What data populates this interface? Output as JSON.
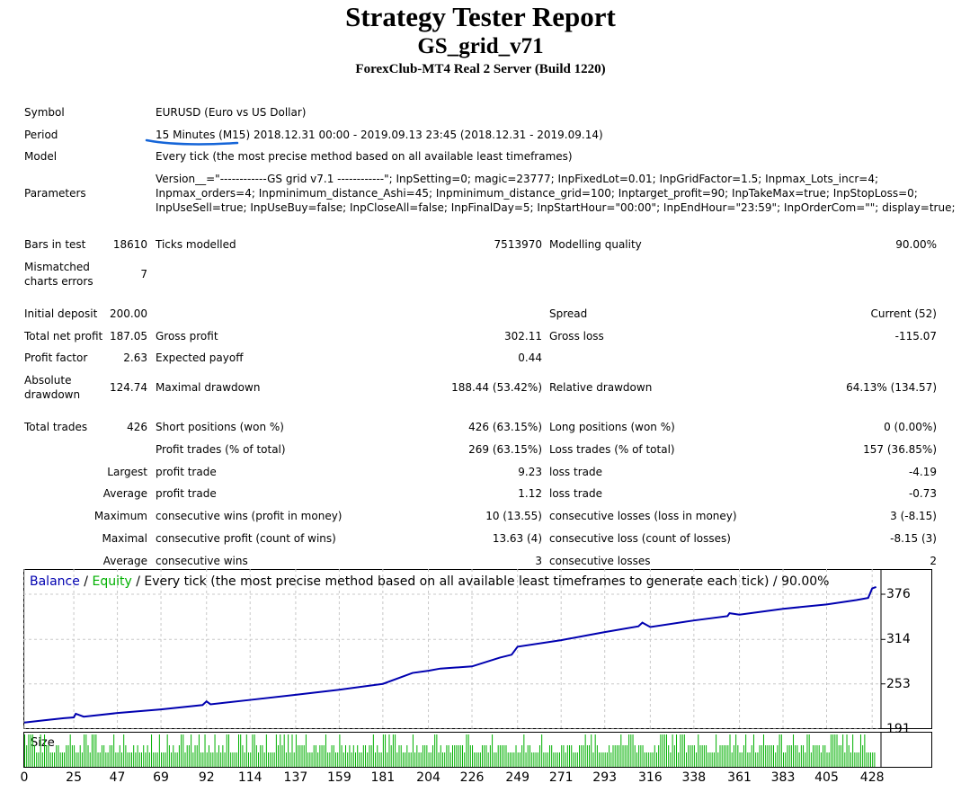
{
  "header": {
    "title": "Strategy Tester Report",
    "expert": "GS_grid_v71",
    "server": "ForexClub-MT4 Real 2 Server (Build 1220)"
  },
  "info": {
    "symbol_label": "Symbol",
    "symbol": "EURUSD (Euro vs US Dollar)",
    "period_label": "Period",
    "period": "15 Minutes (M15) 2018.12.31 00:00 - 2019.09.13 23:45 (2018.12.31 - 2019.09.14)",
    "model_label": "Model",
    "model": "Every tick (the most precise method based on all available least timeframes)",
    "parameters_label": "Parameters",
    "parameters": [
      "Version__=\"------------GS grid v7.1 ------------\"; InpSetting=0; magic=23777; InpFixedLot=0.01; InpGridFactor=1.5; Inpmax_Lots_incr=4;",
      "Inpmax_orders=4; Inpminimum_distance_Ashi=45; Inpminimum_distance_grid=100; Inptarget_profit=90; InpTakeMax=true; InpStopLoss=0;",
      "InpUseSell=true; InpUseBuy=false; InpCloseAll=false; InpFinalDay=5; InpStartHour=\"00:00\"; InpEndHour=\"23:59\"; InpOrderCom=\"\"; display=true;"
    ],
    "annotation_color": "#1565d8"
  },
  "stats": [
    {
      "top": 264,
      "cells": [
        [
          "Bars in test",
          "18610"
        ],
        [
          "Ticks modelled",
          "7513970"
        ],
        [
          "Modelling quality",
          "90.00%"
        ]
      ]
    },
    {
      "top": 289,
      "two_line": true,
      "cells": [
        [
          "Mismatched charts errors",
          "7"
        ]
      ]
    },
    {
      "top": 341,
      "cells": [
        [
          "Initial deposit",
          "200.00"
        ],
        [
          "",
          ""
        ],
        [
          "Spread",
          "Current (52)"
        ]
      ]
    },
    {
      "top": 366,
      "cells": [
        [
          "Total net profit",
          "187.05"
        ],
        [
          "Gross profit",
          "302.11"
        ],
        [
          "Gross loss",
          "-115.07"
        ]
      ]
    },
    {
      "top": 390,
      "cells": [
        [
          "Profit factor",
          "2.63"
        ],
        [
          "Expected payoff",
          "0.44"
        ]
      ]
    },
    {
      "top": 415,
      "two_line": true,
      "cells": [
        [
          "Absolute drawdown",
          "124.74"
        ],
        [
          "Maximal drawdown",
          "188.44 (53.42%)"
        ],
        [
          "Relative drawdown",
          "64.13% (134.57)"
        ]
      ]
    },
    {
      "top": 467,
      "cells": [
        [
          "Total trades",
          "426"
        ],
        [
          "Short positions (won %)",
          "426 (63.15%)"
        ],
        [
          "Long positions (won %)",
          "0 (0.00%)"
        ]
      ]
    },
    {
      "top": 492,
      "cells": [
        [
          "",
          ""
        ],
        [
          "Profit trades (% of total)",
          "269 (63.15%)"
        ],
        [
          "Loss trades (% of total)",
          "157 (36.85%)"
        ]
      ]
    },
    {
      "top": 517,
      "prefix": "Largest",
      "cells": [
        [
          "",
          ""
        ],
        [
          "profit trade",
          "9.23"
        ],
        [
          "loss trade",
          "-4.19"
        ]
      ]
    },
    {
      "top": 541,
      "prefix": "Average",
      "cells": [
        [
          "",
          ""
        ],
        [
          "profit trade",
          "1.12"
        ],
        [
          "loss trade",
          "-0.73"
        ]
      ]
    },
    {
      "top": 566,
      "prefix": "Maximum",
      "cells": [
        [
          "",
          ""
        ],
        [
          "consecutive wins (profit in money)",
          "10 (13.55)"
        ],
        [
          "consecutive losses (loss in money)",
          "3 (-8.15)"
        ]
      ]
    },
    {
      "top": 591,
      "prefix": "Maximal",
      "cells": [
        [
          "",
          ""
        ],
        [
          "consecutive profit (count of wins)",
          "13.63 (4)"
        ],
        [
          "consecutive loss (count of losses)",
          "-8.15 (3)"
        ]
      ]
    },
    {
      "top": 616,
      "prefix": "Average",
      "cells": [
        [
          "",
          ""
        ],
        [
          "consecutive wins",
          "3"
        ],
        [
          "consecutive losses",
          "2"
        ]
      ]
    }
  ],
  "chart_data": {
    "type": "line",
    "legend": {
      "balance": "Balance",
      "sep1": " / ",
      "equity": "Equity",
      "rest": " / Every tick (the most precise method based on all available least timeframes to generate each tick) / 90.00%"
    },
    "volume_label": "Size",
    "x_ticks": [
      0,
      25,
      47,
      69,
      92,
      114,
      137,
      159,
      181,
      204,
      226,
      249,
      271,
      293,
      316,
      338,
      361,
      383,
      405,
      428
    ],
    "y_ticks": [
      191,
      253,
      314,
      376
    ],
    "xlim": [
      0,
      432
    ],
    "ylim": [
      191,
      376
    ],
    "grid": true,
    "balance_x": [
      0,
      10,
      20,
      25,
      26,
      30,
      47,
      69,
      90,
      92,
      94,
      114,
      137,
      159,
      181,
      190,
      196,
      204,
      210,
      226,
      240,
      246,
      249,
      271,
      285,
      293,
      310,
      312,
      316,
      338,
      355,
      356,
      361,
      383,
      405,
      420,
      426,
      428,
      430
    ],
    "balance_y": [
      200,
      203,
      206,
      207,
      212,
      208,
      213,
      218,
      224,
      229,
      225,
      231,
      238,
      245,
      253,
      262,
      268,
      271,
      274,
      277,
      289,
      293,
      304,
      313,
      320,
      324,
      332,
      337,
      331,
      340,
      346,
      350,
      348,
      356,
      362,
      368,
      371,
      384,
      386
    ],
    "colors": {
      "balance": "#0000b0",
      "equity": "#00b000",
      "volume": "#00b000",
      "grid": "#c8c8c8"
    }
  }
}
